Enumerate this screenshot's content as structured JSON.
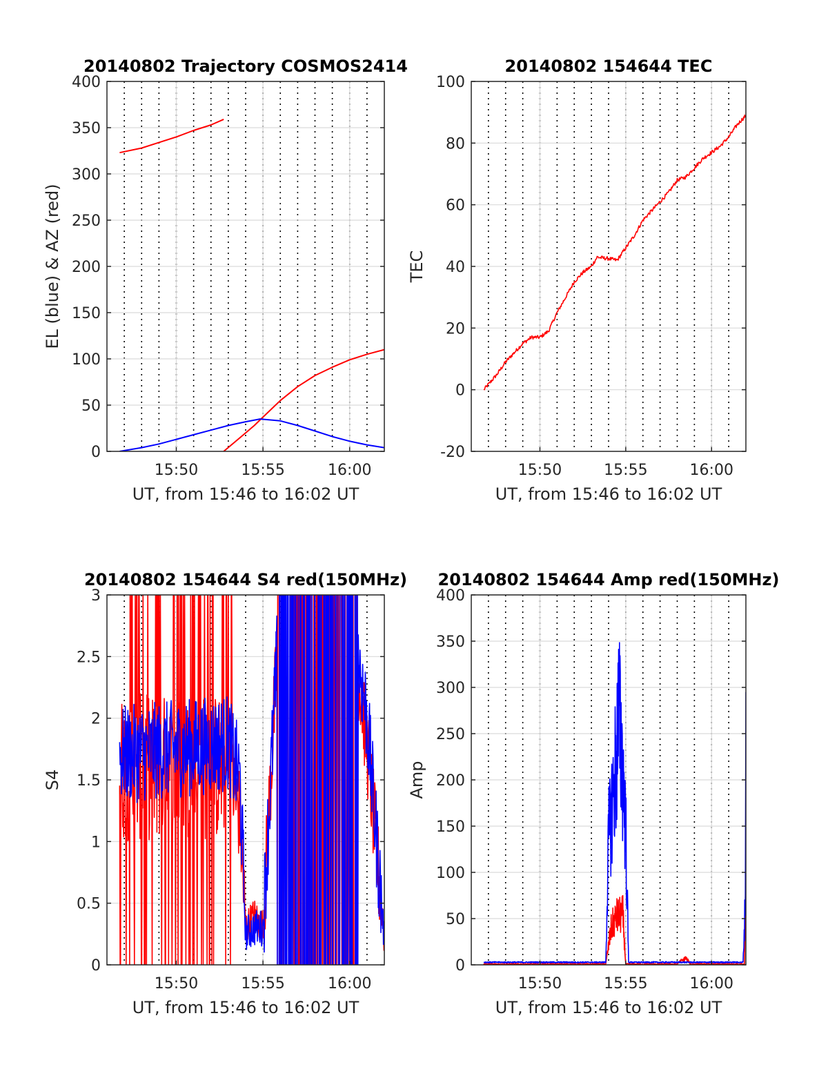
{
  "colors": {
    "el_blue": "#0000ff",
    "az_red": "#ff0000",
    "axis": "#262626",
    "grid": "#d9d9d9"
  },
  "chart_data": [
    {
      "type": "line",
      "title": "20140802 Trajectory COSMOS2414",
      "xlabel": "UT, from 15:46 to 16:02 UT",
      "ylabel": "EL (blue) & AZ (red)",
      "xlim": [
        "15:46",
        "16:02"
      ],
      "ylim": [
        0,
        400
      ],
      "yticks": [
        0,
        50,
        100,
        150,
        200,
        250,
        300,
        350,
        400
      ],
      "xticks": [
        "15:50",
        "15:55",
        "16:00"
      ],
      "grid": true,
      "series": [
        {
          "color": "#ff0000",
          "x": [
            "15:46:44",
            "15:48:00",
            "15:49:00",
            "15:50:00",
            "15:51:00",
            "15:52:00",
            "15:52:44"
          ],
          "values": [
            323,
            328,
            334,
            340,
            347,
            353,
            359
          ]
        },
        {
          "color": "#ff0000",
          "x": [
            "15:52:44",
            "15:53:30",
            "15:54:00",
            "15:54:30",
            "15:55:00",
            "15:55:30",
            "15:56:00",
            "15:57:00",
            "15:58:00",
            "15:59:00",
            "16:00:00",
            "16:01:00",
            "16:02:00"
          ],
          "values": [
            0,
            12,
            20,
            28,
            37,
            46,
            55,
            70,
            82,
            91,
            99,
            105,
            110
          ]
        },
        {
          "color": "#0000ff",
          "x": [
            "15:46:44",
            "15:48:00",
            "15:49:00",
            "15:50:00",
            "15:51:00",
            "15:52:00",
            "15:53:00",
            "15:54:00",
            "15:54:50",
            "15:56:00",
            "15:57:00",
            "15:58:00",
            "15:59:00",
            "16:00:00",
            "16:01:00",
            "16:02:00"
          ],
          "values": [
            0,
            4,
            8,
            13,
            18,
            23,
            28,
            32,
            35,
            33,
            28,
            22,
            16,
            11,
            7,
            4
          ]
        }
      ]
    },
    {
      "type": "line",
      "title": "20140802 154644 TEC",
      "xlabel": "UT, from 15:46 to 16:02 UT",
      "ylabel": "TEC",
      "xlim": [
        "15:46",
        "16:02"
      ],
      "ylim": [
        -20,
        100
      ],
      "yticks": [
        -20,
        0,
        20,
        40,
        60,
        80,
        100
      ],
      "xticks": [
        "15:50",
        "15:55",
        "16:00"
      ],
      "grid": true,
      "series": [
        {
          "color": "#ff0000",
          "x": [
            "15:46:44",
            "15:47:30",
            "15:48:00",
            "15:48:30",
            "15:49:00",
            "15:49:30",
            "15:50:00",
            "15:50:30",
            "15:51:00",
            "15:51:30",
            "15:52:00",
            "15:52:30",
            "15:53:00",
            "15:53:20",
            "15:54:00",
            "15:54:30",
            "15:55:00",
            "15:55:30",
            "15:56:00",
            "15:56:30",
            "15:57:00",
            "15:57:30",
            "15:58:00",
            "15:58:30",
            "15:59:00",
            "15:59:30",
            "16:00:00",
            "16:00:30",
            "16:01:00",
            "16:01:30",
            "16:02:00"
          ],
          "values": [
            0,
            5,
            9,
            12,
            15,
            17,
            17,
            19,
            25,
            30,
            35,
            38,
            40,
            43,
            42.5,
            42,
            46,
            50,
            55,
            58,
            61,
            64,
            68,
            69,
            72,
            75,
            77,
            79,
            82,
            86,
            89
          ]
        }
      ]
    },
    {
      "type": "line",
      "title": "20140802 154644 S4 red(150MHz)",
      "xlabel": "UT, from 15:46 to 16:02 UT",
      "ylabel": "S4",
      "xlim": [
        "15:46",
        "16:02"
      ],
      "ylim": [
        0,
        3
      ],
      "yticks": [
        0,
        0.5,
        1,
        1.5,
        2,
        2.5,
        3
      ],
      "xticks": [
        "15:50",
        "15:55",
        "16:00"
      ],
      "grid": true,
      "series": [
        {
          "color": "#ff0000",
          "x": [
            "15:46:44",
            "15:53:00",
            "15:53:40",
            "15:54:00",
            "15:54:30",
            "15:55:00",
            "15:56:00",
            "16:00:00",
            "16:01:00",
            "16:02:00"
          ],
          "values": [
            1.6,
            1.6,
            1.2,
            0.3,
            0.4,
            0.3,
            3,
            3,
            1.8,
            0.2
          ],
          "noise": "high"
        },
        {
          "color": "#0000ff",
          "x": [
            "15:46:44",
            "15:53:00",
            "15:53:40",
            "15:54:00",
            "15:54:30",
            "15:55:00",
            "15:56:00",
            "16:00:00",
            "16:01:00",
            "16:02:00"
          ],
          "values": [
            1.7,
            1.8,
            1.5,
            0.25,
            0.3,
            0.3,
            3,
            3,
            2.0,
            0.2
          ],
          "noise": "high"
        }
      ]
    },
    {
      "type": "line",
      "title": "20140802 154644 Amp red(150MHz)",
      "xlabel": "UT, from 15:46 to 16:02 UT",
      "ylabel": "Amp",
      "xlim": [
        "15:46",
        "16:02"
      ],
      "ylim": [
        0,
        400
      ],
      "yticks": [
        0,
        50,
        100,
        150,
        200,
        250,
        300,
        350,
        400
      ],
      "xticks": [
        "15:50",
        "15:55",
        "16:00"
      ],
      "grid": true,
      "series": [
        {
          "color": "#ff0000",
          "x": [
            "15:46:44",
            "15:53:50",
            "15:54:10",
            "15:54:30",
            "15:54:50",
            "15:55:00",
            "15:58:00",
            "15:58:30",
            "15:58:45",
            "16:01:55",
            "16:02:00"
          ],
          "values": [
            0,
            0,
            55,
            70,
            72,
            0,
            0,
            10,
            0,
            0,
            95
          ]
        },
        {
          "color": "#0000ff",
          "x": [
            "15:46:44",
            "15:53:50",
            "15:54:00",
            "15:54:20",
            "15:54:35",
            "15:54:45",
            "15:55:00",
            "15:55:10",
            "16:01:50",
            "16:01:57",
            "16:02:00"
          ],
          "values": [
            2,
            2,
            180,
            260,
            352,
            310,
            200,
            2,
            2,
            80,
            295
          ]
        }
      ]
    }
  ]
}
